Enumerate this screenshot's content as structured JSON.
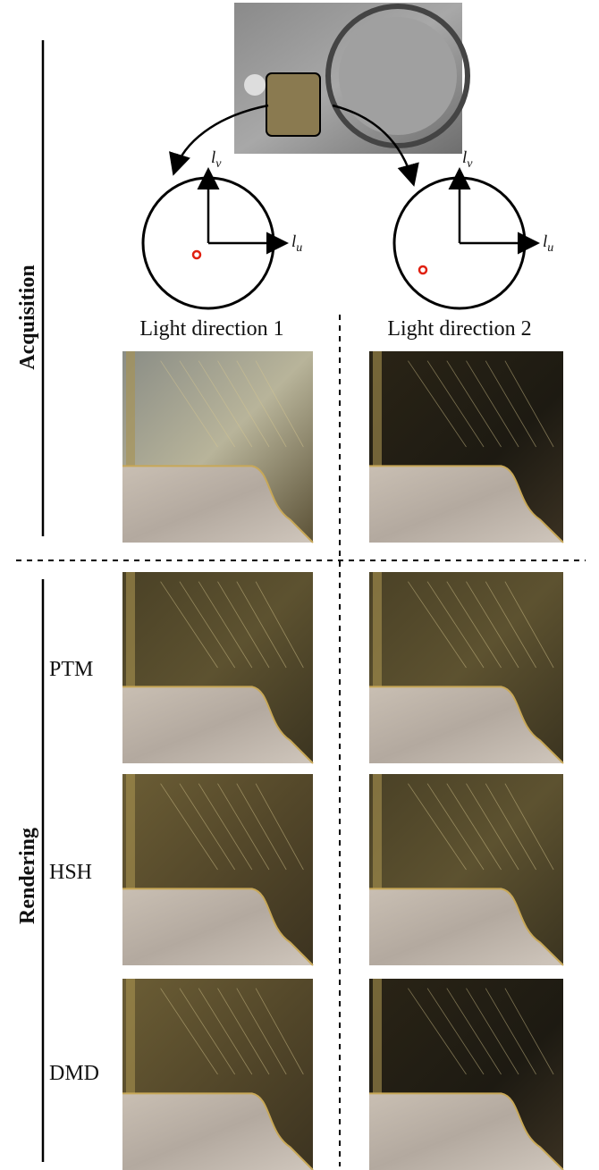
{
  "sections": {
    "acquisition": "Acquisition",
    "rendering": "Rendering"
  },
  "light_directions": [
    "Light direction 1",
    "Light direction 2"
  ],
  "diagrams": [
    {
      "v_axis": {
        "symbol": "l",
        "subscript": "v"
      },
      "u_axis": {
        "symbol": "l",
        "subscript": "u"
      }
    },
    {
      "v_axis": {
        "symbol": "l",
        "subscript": "v"
      },
      "u_axis": {
        "symbol": "l",
        "subscript": "u"
      }
    }
  ],
  "methods": [
    "PTM",
    "HSH",
    "DMD"
  ]
}
